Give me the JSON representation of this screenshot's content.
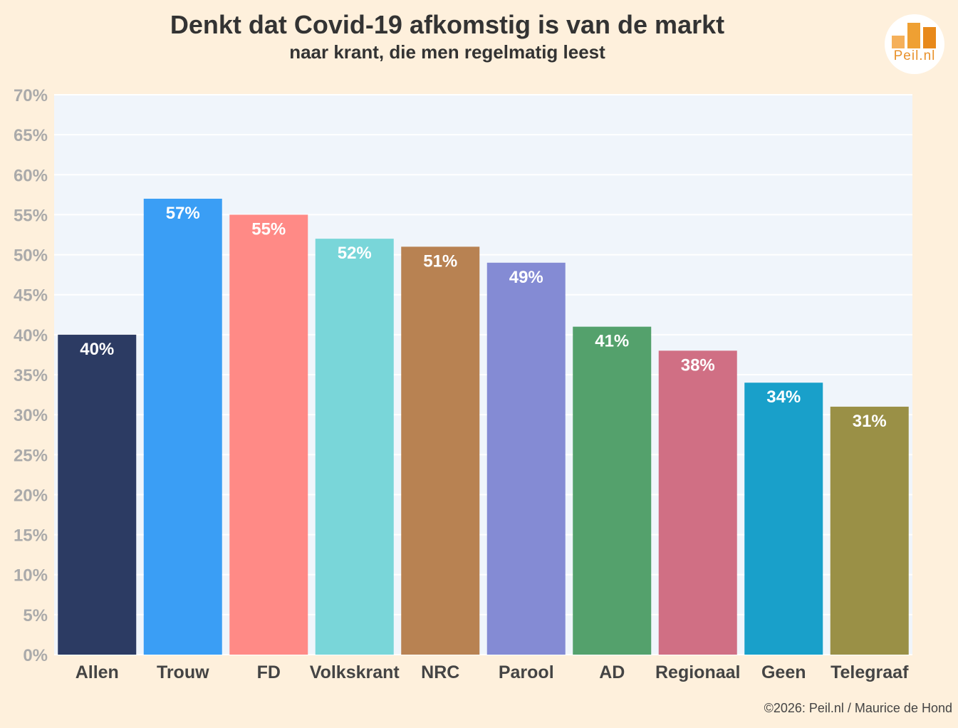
{
  "header": {
    "title": "Denkt dat Covid-19 afkomstig is van de markt",
    "subtitle": "naar krant, die men regelmatig leest"
  },
  "logo": {
    "text": "Peil.nl",
    "bar_colors": [
      "#F5B05A",
      "#EFA033",
      "#E8891A"
    ]
  },
  "footer": {
    "credit": "©2026: Peil.nl / Maurice de Hond"
  },
  "colors": {
    "background": "#FEF0DC",
    "plot_background": "#F0F5FB",
    "grid": "#FFFFFF",
    "tick_label": "#AAAAAA",
    "category_label": "#444444",
    "value_label": "#FFFFFF"
  },
  "chart_data": {
    "type": "bar",
    "title": "Denkt dat Covid-19 afkomstig is van de markt",
    "subtitle": "naar krant, die men regelmatig leest",
    "xlabel": "",
    "ylabel": "",
    "categories": [
      "Allen",
      "Trouw",
      "FD",
      "Volkskrant",
      "NRC",
      "Parool",
      "AD",
      "Regionaal",
      "Geen",
      "Telegraaf"
    ],
    "values": [
      40,
      57,
      55,
      52,
      51,
      49,
      41,
      38,
      34,
      31
    ],
    "value_labels": [
      "40%",
      "57%",
      "55%",
      "52%",
      "51%",
      "49%",
      "41%",
      "38%",
      "34%",
      "31%"
    ],
    "bar_colors": [
      "#2C3B63",
      "#3A9EF5",
      "#FF8A86",
      "#79D6D9",
      "#B88252",
      "#848BD4",
      "#54A16C",
      "#D06F84",
      "#19A0CA",
      "#9A9046"
    ],
    "ylim": [
      0,
      70
    ],
    "yticks": [
      0,
      5,
      10,
      15,
      20,
      25,
      30,
      35,
      40,
      45,
      50,
      55,
      60,
      65,
      70
    ],
    "ytick_labels": [
      "0%",
      "5%",
      "10%",
      "15%",
      "20%",
      "25%",
      "30%",
      "35%",
      "40%",
      "45%",
      "50%",
      "55%",
      "60%",
      "65%",
      "70%"
    ],
    "grid": true,
    "legend": "none"
  }
}
